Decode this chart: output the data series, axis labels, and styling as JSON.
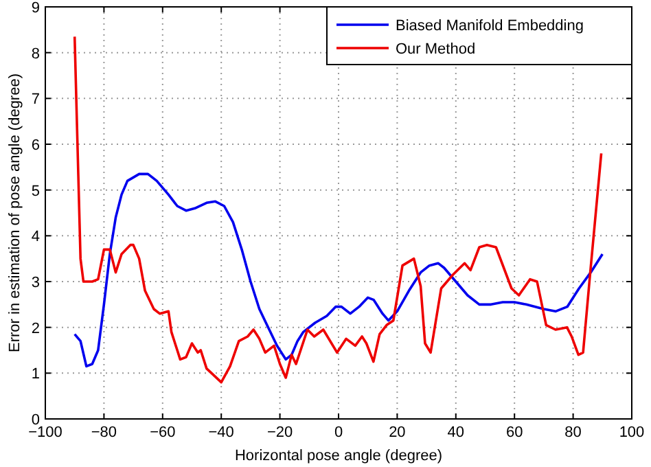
{
  "chart_data": {
    "type": "line",
    "xlabel": "Horizontal pose angle (degree)",
    "ylabel": "Error in estimation of pose angle (degree)",
    "xlim": [
      -100,
      100
    ],
    "xticks": [
      -100,
      -80,
      -60,
      -40,
      -20,
      0,
      20,
      40,
      60,
      80,
      100
    ],
    "ylim": [
      0,
      9
    ],
    "yticks": [
      0,
      1,
      2,
      3,
      4,
      5,
      6,
      7,
      8,
      9
    ],
    "grid": true,
    "legend": "top right",
    "line_style": "solid",
    "series": [
      {
        "name": "Biased Manifold Embedding",
        "color": "#0000ee",
        "x": [
          -90,
          -88,
          -86,
          -84,
          -82,
          -80,
          -78,
          -76,
          -74,
          -72,
          -68,
          -65,
          -62,
          -58,
          -55,
          -52,
          -49,
          -45,
          -42,
          -39,
          -36,
          -33,
          -30,
          -27,
          -24,
          -21,
          -18,
          -16,
          -14,
          -12,
          -8,
          -4,
          -1,
          1,
          4,
          7,
          10,
          12,
          15,
          17,
          20,
          24,
          28,
          31,
          34,
          36,
          40,
          44,
          48,
          52,
          56,
          60,
          64,
          70,
          74,
          78,
          82,
          86,
          90
        ],
        "values": [
          1.85,
          1.7,
          1.15,
          1.2,
          1.5,
          2.5,
          3.6,
          4.4,
          4.9,
          5.2,
          5.35,
          5.35,
          5.2,
          4.9,
          4.65,
          4.55,
          4.6,
          4.72,
          4.75,
          4.65,
          4.3,
          3.7,
          3.0,
          2.4,
          2.0,
          1.6,
          1.3,
          1.4,
          1.7,
          1.9,
          2.1,
          2.25,
          2.45,
          2.45,
          2.3,
          2.45,
          2.65,
          2.6,
          2.3,
          2.15,
          2.35,
          2.8,
          3.2,
          3.35,
          3.4,
          3.3,
          3.0,
          2.7,
          2.5,
          2.5,
          2.55,
          2.55,
          2.5,
          2.4,
          2.35,
          2.45,
          2.85,
          3.2,
          3.6
        ]
      },
      {
        "name": "Our Method",
        "color": "#ee0000",
        "x": [
          -90,
          -88,
          -87,
          -84,
          -82,
          -80,
          -78,
          -76,
          -74,
          -71,
          -70,
          -68,
          -66,
          -63,
          -61,
          -58,
          -57,
          -54,
          -52,
          -50,
          -48,
          -47,
          -45,
          -40,
          -37,
          -34,
          -31,
          -29,
          -27,
          -25,
          -22,
          -20,
          -18,
          -16,
          -14.5,
          -10.6,
          -8.3,
          -5.2,
          -0.5,
          2.6,
          5.7,
          8,
          9.5,
          11.9,
          14,
          16.4,
          18.7,
          21.8,
          25.7,
          28,
          29.5,
          31.4,
          35,
          39,
          43,
          45,
          48,
          50.6,
          53.7,
          59,
          61.5,
          65.3,
          67.7,
          70.8,
          74,
          77.9,
          79.5,
          81.8,
          83.4,
          85.7,
          89.6
        ],
        "values": [
          8.35,
          3.5,
          3.0,
          3.0,
          3.05,
          3.7,
          3.7,
          3.2,
          3.6,
          3.8,
          3.8,
          3.5,
          2.8,
          2.4,
          2.3,
          2.35,
          1.9,
          1.3,
          1.35,
          1.65,
          1.45,
          1.5,
          1.1,
          0.8,
          1.15,
          1.7,
          1.8,
          1.95,
          1.75,
          1.45,
          1.6,
          1.2,
          0.9,
          1.4,
          1.2,
          1.95,
          1.8,
          1.95,
          1.45,
          1.75,
          1.6,
          1.8,
          1.65,
          1.25,
          1.85,
          2.05,
          2.15,
          3.35,
          3.5,
          2.9,
          1.65,
          1.45,
          2.85,
          3.15,
          3.4,
          3.25,
          3.75,
          3.8,
          3.75,
          2.85,
          2.7,
          3.05,
          3.0,
          2.05,
          1.95,
          2.0,
          1.8,
          1.4,
          1.45,
          3.1,
          5.8
        ]
      }
    ]
  }
}
